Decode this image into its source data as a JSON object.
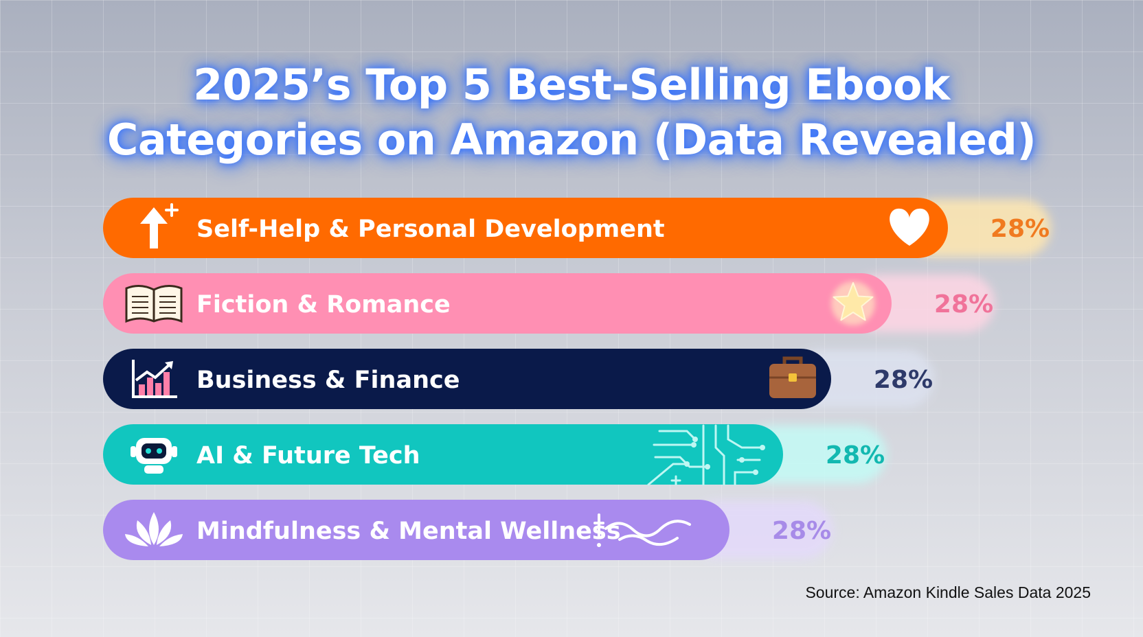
{
  "title_lines": [
    "2025’s Top 5 Best-Selling Ebook",
    "Categories on Amazon (Data Revealed)"
  ],
  "source": "Source: Amazon Kindle Sales Data 2025",
  "chart_data": {
    "type": "bar",
    "orientation": "horizontal",
    "title": "2025’s Top 5 Best-Selling Ebook Categories on Amazon (Data Revealed)",
    "categories": [
      "Self-Help & Personal Development",
      "Fiction & Romance",
      "Business & Finance",
      "AI & Future Tech",
      "Mindfulness & Mental Wellness"
    ],
    "values": [
      28,
      28,
      28,
      28,
      28
    ],
    "value_labels": [
      "28%",
      "28%",
      "28%",
      "28%",
      "28%"
    ],
    "bar_colors": [
      "#ff6a00",
      "#ff8fb3",
      "#0a1a4a",
      "#11c6bf",
      "#a98aee"
    ],
    "label_colors": [
      "#f07a20",
      "#f0739a",
      "#2e3a6a",
      "#12b8b0",
      "#a78be8"
    ],
    "left_icons": [
      "arrow-up-plus-icon",
      "open-book-icon",
      "growth-chart-icon",
      "robot-icon",
      "lotus-icon"
    ],
    "right_icons": [
      "heart-icon",
      "star-icon",
      "briefcase-icon",
      "circuit-icon",
      "wave-icon"
    ],
    "legend": "none",
    "grid": false
  }
}
